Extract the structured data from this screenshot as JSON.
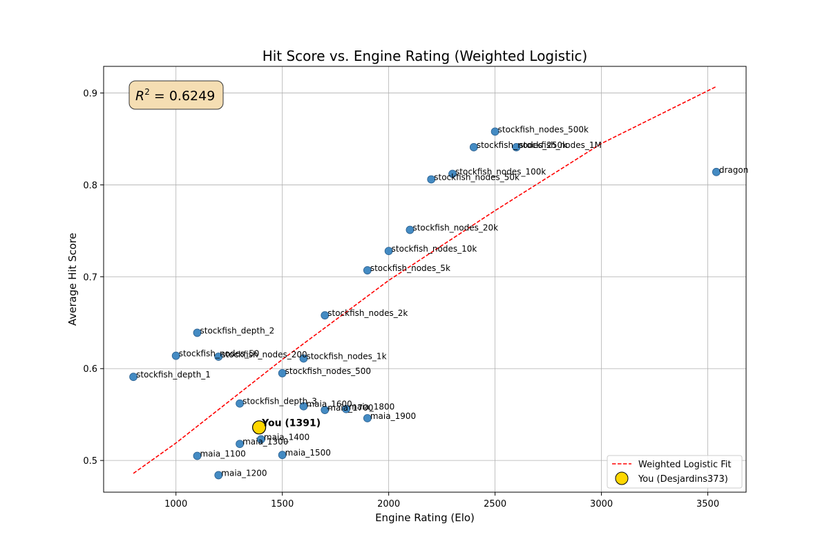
{
  "chart_data": {
    "type": "scatter",
    "title": "Hit Score vs. Engine Rating (Weighted Logistic)",
    "xlabel": "Engine Rating (Elo)",
    "ylabel": "Average Hit Score",
    "xlim": [
      660,
      3680
    ],
    "ylim": [
      0.4655,
      0.929
    ],
    "xticks": [
      1000,
      1500,
      2000,
      2500,
      3000,
      3500
    ],
    "yticks": [
      0.5,
      0.6,
      0.7,
      0.8,
      0.9
    ],
    "grid": true,
    "legend_position": "lower-right",
    "annotation": "R^2 = 0.6249",
    "r2_value": "0.6249",
    "colors": {
      "points": "#3a85c0",
      "fit": "#ff0000",
      "you": "#ffd700",
      "annotation_bg": "#f5deb3"
    },
    "engines": [
      {
        "label": "stockfish_depth_1",
        "x": 800,
        "y": 0.591
      },
      {
        "label": "stockfish_depth_2",
        "x": 1100,
        "y": 0.639
      },
      {
        "label": "stockfish_depth_3",
        "x": 1300,
        "y": 0.562
      },
      {
        "label": "stockfish_nodes_50",
        "x": 1000,
        "y": 0.614
      },
      {
        "label": "stockfish_nodes_200",
        "x": 1200,
        "y": 0.613
      },
      {
        "label": "stockfish_nodes_500",
        "x": 1500,
        "y": 0.595
      },
      {
        "label": "stockfish_nodes_1k",
        "x": 1600,
        "y": 0.611
      },
      {
        "label": "stockfish_nodes_2k",
        "x": 1700,
        "y": 0.658
      },
      {
        "label": "stockfish_nodes_5k",
        "x": 1900,
        "y": 0.707
      },
      {
        "label": "stockfish_nodes_10k",
        "x": 2000,
        "y": 0.728
      },
      {
        "label": "stockfish_nodes_20k",
        "x": 2100,
        "y": 0.751
      },
      {
        "label": "stockfish_nodes_50k",
        "x": 2200,
        "y": 0.806
      },
      {
        "label": "stockfish_nodes_100k",
        "x": 2300,
        "y": 0.812
      },
      {
        "label": "stockfish_nodes_250k",
        "x": 2400,
        "y": 0.841
      },
      {
        "label": "stockfish_nodes_500k",
        "x": 2500,
        "y": 0.858
      },
      {
        "label": "stockfish_nodes_1M",
        "x": 2600,
        "y": 0.841
      },
      {
        "label": "dragon",
        "x": 3540,
        "y": 0.814
      },
      {
        "label": "maia_1100",
        "x": 1100,
        "y": 0.505
      },
      {
        "label": "maia_1200",
        "x": 1200,
        "y": 0.484
      },
      {
        "label": "maia_1300",
        "x": 1300,
        "y": 0.518
      },
      {
        "label": "maia_1400",
        "x": 1400,
        "y": 0.523
      },
      {
        "label": "maia_1500",
        "x": 1500,
        "y": 0.506
      },
      {
        "label": "maia_1600",
        "x": 1600,
        "y": 0.559
      },
      {
        "label": "maia_1700",
        "x": 1700,
        "y": 0.555
      },
      {
        "label": "maia_1800",
        "x": 1800,
        "y": 0.556
      },
      {
        "label": "maia_1900",
        "x": 1900,
        "y": 0.546
      }
    ],
    "you": {
      "label": "You (1391)",
      "x": 1391,
      "y": 0.536
    },
    "fit_line": [
      {
        "x": 800,
        "y": 0.486
      },
      {
        "x": 1000,
        "y": 0.519
      },
      {
        "x": 1500,
        "y": 0.61
      },
      {
        "x": 2000,
        "y": 0.696
      },
      {
        "x": 2500,
        "y": 0.772
      },
      {
        "x": 3000,
        "y": 0.845
      },
      {
        "x": 3540,
        "y": 0.907
      }
    ],
    "legend": [
      {
        "label": "Weighted Logistic Fit",
        "kind": "line"
      },
      {
        "label": "You (Desjardins373)",
        "kind": "marker"
      }
    ]
  }
}
